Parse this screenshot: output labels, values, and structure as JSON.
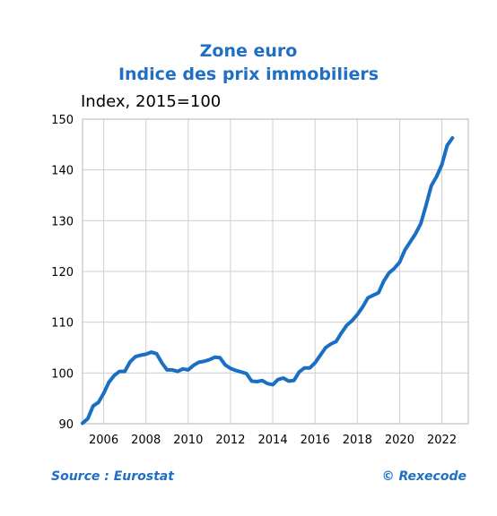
{
  "header": {
    "title_line1": "Zone euro",
    "title_line2": "Indice des prix immobiliers"
  },
  "footer": {
    "source": "Source : Eurostat",
    "copyright": "© Rexecode"
  },
  "chart_data": {
    "type": "line",
    "title": "Indice des prix immobiliers",
    "subtitle": "Zone euro",
    "ylabel": "Index, 2015=100",
    "xlabel": "",
    "ylim": [
      90,
      150
    ],
    "xlim": [
      2005.0,
      2023.25
    ],
    "yticks": [
      90,
      100,
      110,
      120,
      130,
      140,
      150
    ],
    "xticks": [
      2006,
      2008,
      2010,
      2012,
      2014,
      2016,
      2018,
      2020,
      2022
    ],
    "grid": true,
    "colors": {
      "line": "#1a6fc4",
      "title": "#1f6fc5",
      "grid": "#cfcfcf"
    },
    "series": [
      {
        "x": [
          2005.0,
          2005.25,
          2005.5,
          2005.75,
          2006.0,
          2006.25,
          2006.5,
          2006.75,
          2007.0,
          2007.25,
          2007.5,
          2007.75,
          2008.0,
          2008.25,
          2008.5,
          2008.75,
          2009.0,
          2009.25,
          2009.5,
          2009.75,
          2010.0,
          2010.25,
          2010.5,
          2010.75,
          2011.0,
          2011.25,
          2011.5,
          2011.75,
          2012.0,
          2012.25,
          2012.5,
          2012.75,
          2013.0,
          2013.25,
          2013.5,
          2013.75,
          2014.0,
          2014.25,
          2014.5,
          2014.75,
          2015.0,
          2015.25,
          2015.5,
          2015.75,
          2016.0,
          2016.25,
          2016.5,
          2016.75,
          2017.0,
          2017.25,
          2017.5,
          2017.75,
          2018.0,
          2018.25,
          2018.5,
          2018.75,
          2019.0,
          2019.25,
          2019.5,
          2019.75,
          2020.0,
          2020.25,
          2020.5,
          2020.75,
          2021.0,
          2021.25,
          2021.5,
          2021.75,
          2022.0,
          2022.25,
          2022.5
        ],
        "values": [
          90.1,
          91.0,
          93.5,
          94.2,
          96.0,
          98.2,
          99.5,
          100.3,
          100.3,
          102.2,
          103.2,
          103.5,
          103.7,
          104.1,
          103.8,
          102.0,
          100.6,
          100.6,
          100.3,
          100.8,
          100.6,
          101.5,
          102.1,
          102.3,
          102.6,
          103.1,
          103.0,
          101.6,
          100.9,
          100.5,
          100.2,
          99.9,
          98.4,
          98.3,
          98.5,
          97.9,
          97.7,
          98.7,
          99.0,
          98.4,
          98.5,
          100.2,
          101.0,
          101.0,
          102.0,
          103.5,
          105.0,
          105.7,
          106.2,
          107.9,
          109.4,
          110.3,
          111.5,
          113.0,
          114.8,
          115.3,
          115.8,
          118.1,
          119.7,
          120.6,
          121.8,
          124.2,
          125.8,
          127.4,
          129.4,
          133.0,
          136.9,
          138.7,
          141.0,
          144.8,
          146.3
        ]
      }
    ]
  }
}
